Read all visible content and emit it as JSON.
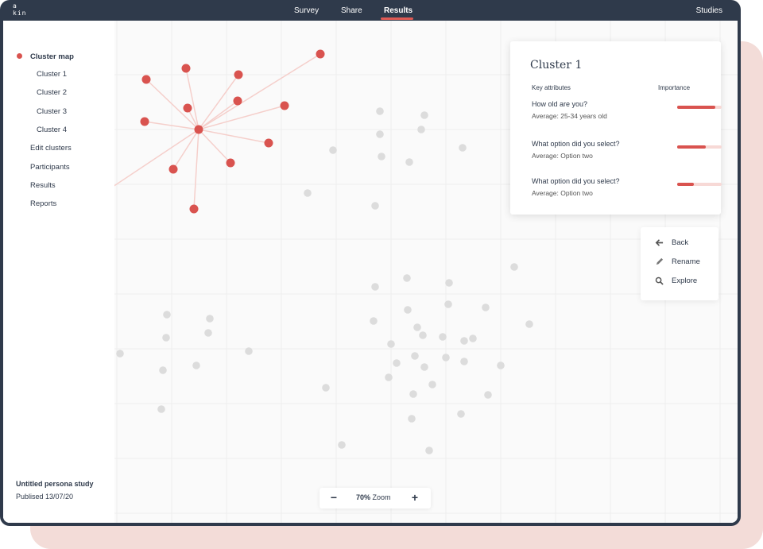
{
  "logo": {
    "line1": "a",
    "line2": "kin"
  },
  "nav": {
    "items": [
      "Survey",
      "Share",
      "Results"
    ],
    "active": "Results",
    "studies": "Studies"
  },
  "sidebar": {
    "items": [
      {
        "label": "Cluster map",
        "active": true
      },
      {
        "label": "Cluster 1",
        "sub": true
      },
      {
        "label": "Cluster 2",
        "sub": true
      },
      {
        "label": "Cluster 3",
        "sub": true
      },
      {
        "label": "Cluster 4",
        "sub": true
      },
      {
        "label": "Edit clusters"
      },
      {
        "label": "Participants"
      },
      {
        "label": "Results"
      },
      {
        "label": "Reports"
      }
    ],
    "study_title": "Untitled persona study",
    "study_date": "Publised 13/07/20"
  },
  "card": {
    "title": "Cluster 1",
    "col_attributes": "Key attributes",
    "col_importance": "Importance",
    "attributes": [
      {
        "question": "How old are you?",
        "answer": "Average: 25-34 years old",
        "importance": 0.86
      },
      {
        "question": "What option did you select?",
        "answer": "Average: Option two",
        "importance": 0.64
      },
      {
        "question": "What option did you select?",
        "answer": "Average: Option two",
        "importance": 0.38
      }
    ]
  },
  "actions": {
    "back": "Back",
    "rename": "Rename",
    "explore": "Explore"
  },
  "zoom": {
    "minus": "−",
    "plus": "+",
    "value": "70%",
    "label": "Zoom"
  },
  "colors": {
    "accent": "#d9534f",
    "frame": "#2f3a4b",
    "point": "#dcdcdc",
    "link": "#f5cfcb"
  }
}
